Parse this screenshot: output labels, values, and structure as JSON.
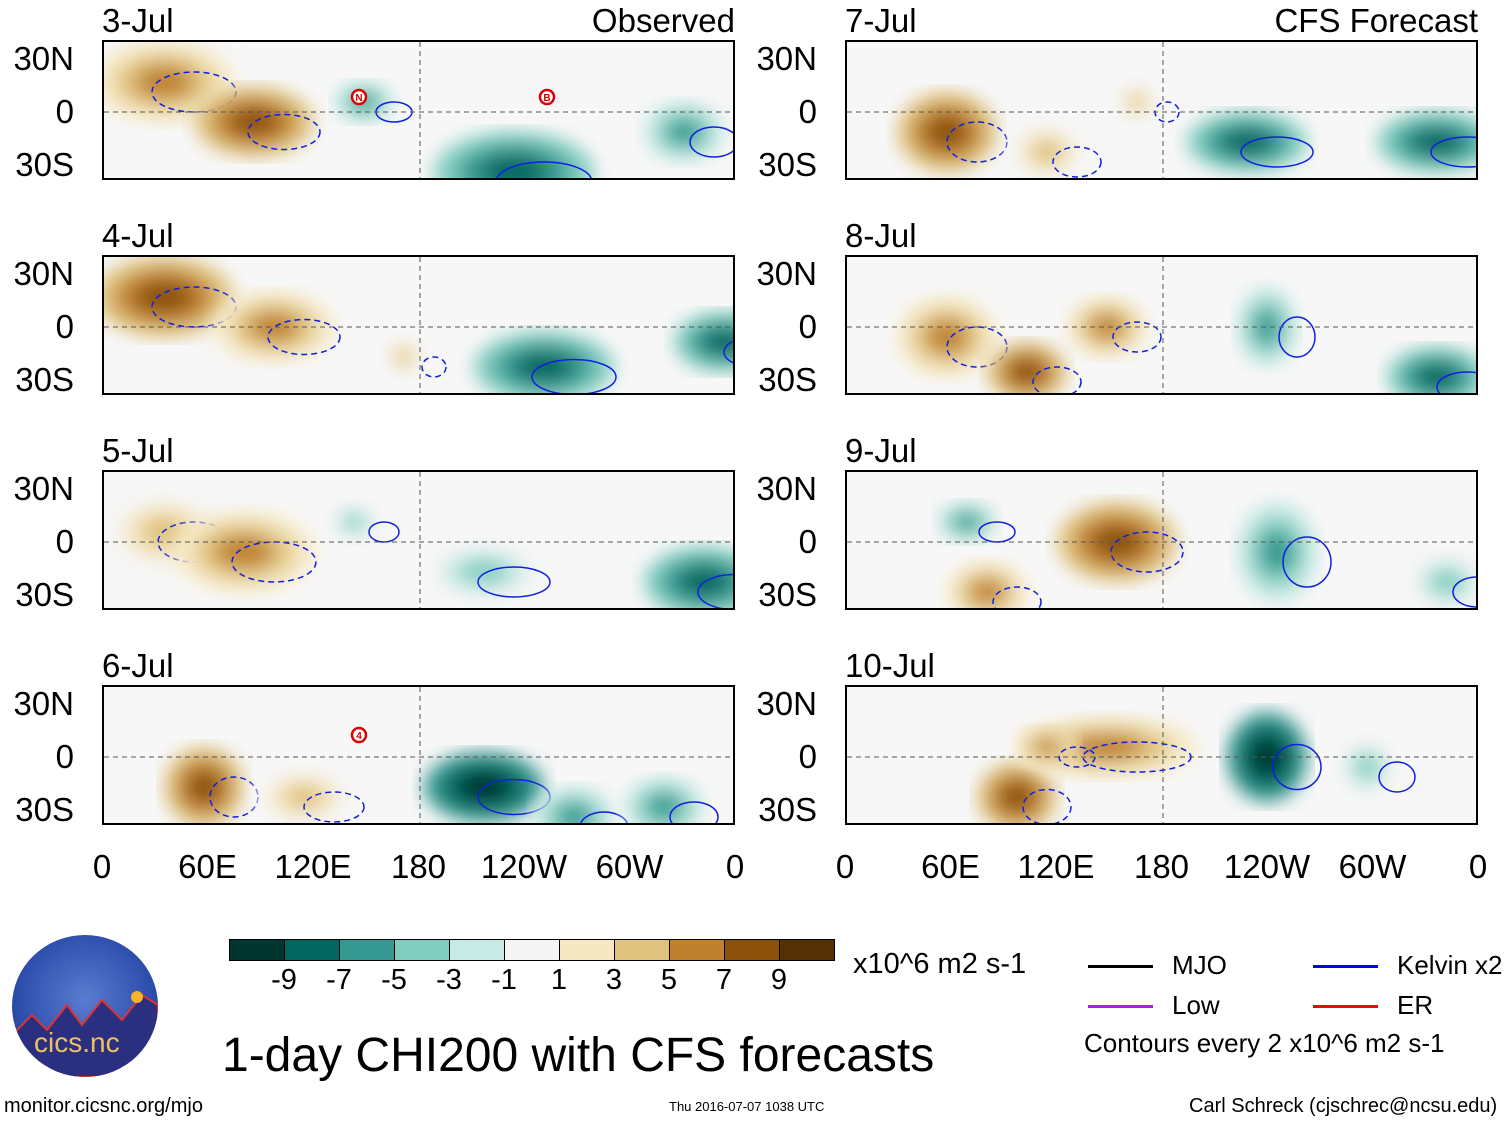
{
  "chart_data": {
    "type": "heatmap",
    "title": "1-day CHI200 with CFS forecasts",
    "variable": "CHI200",
    "units": "x10^6 m2 s-1",
    "columns": [
      {
        "heading": "Observed",
        "panels": [
          {
            "date": "3-Jul",
            "storms": [
              "N",
              "B"
            ]
          },
          {
            "date": "4-Jul",
            "storms": []
          },
          {
            "date": "5-Jul",
            "storms": []
          },
          {
            "date": "6-Jul",
            "storms": [
              "4"
            ]
          }
        ]
      },
      {
        "heading": "CFS Forecast",
        "panels": [
          {
            "date": "7-Jul",
            "storms": []
          },
          {
            "date": "8-Jul",
            "storms": []
          },
          {
            "date": "9-Jul",
            "storms": []
          },
          {
            "date": "10-Jul",
            "storms": []
          }
        ]
      }
    ],
    "y_ticks": [
      "30N",
      "0",
      "30S"
    ],
    "x_ticks": [
      "0",
      "60E",
      "120E",
      "180",
      "120W",
      "60W",
      "0"
    ],
    "colorbar": {
      "levels": [
        "-9",
        "-7",
        "-5",
        "-3",
        "-1",
        "1",
        "3",
        "5",
        "7",
        "9"
      ],
      "colors": [
        "#01352f",
        "#02675e",
        "#359891",
        "#80cdc0",
        "#c7eae5",
        "#f5f5f5",
        "#f6e8c3",
        "#dfc27d",
        "#bf812d",
        "#8c510a",
        "#543005"
      ]
    },
    "legend": [
      {
        "label": "MJO",
        "color": "#000000"
      },
      {
        "label": "Kelvin x2",
        "color": "#0000ff"
      },
      {
        "label": "Low",
        "color": "#a020f0"
      },
      {
        "label": "ER",
        "color": "#ff0000"
      }
    ],
    "contour_note": "Contours every 2 x10^6 m2 s-1"
  },
  "logo_text": "cics.nc",
  "logo_ring": "Cooperative Institute for Climate and Satellites",
  "footer": {
    "url": "monitor.cicsnc.org/mjo",
    "timestamp": "Thu 2016-07-07 1038 UTC",
    "author": "Carl Schreck (cjschrec@ncsu.edu)"
  }
}
